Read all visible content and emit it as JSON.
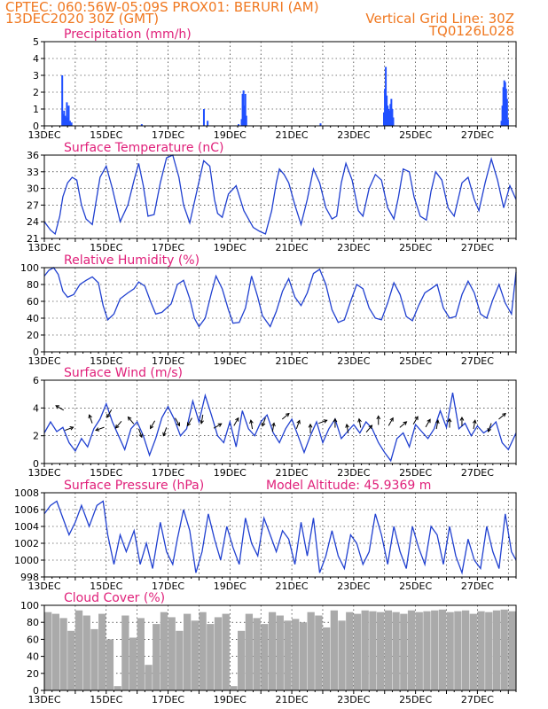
{
  "header": {
    "line1_left": "CPTEC:   060:56W-05:09S   PROX01: BERURI (AM)",
    "line2_left": "13DEC2020 30Z (GMT)",
    "right1": "Vertical Grid Line: 30Z",
    "right2": "TQ0126L028"
  },
  "chart_data": [
    {
      "type": "bar",
      "title": "Precipitation (mm/h)",
      "xlim": [
        0,
        15.25
      ],
      "ylim": [
        0,
        5
      ],
      "yticks": [
        0,
        1,
        2,
        3,
        4,
        5
      ],
      "xticklabels": [
        "13DEC",
        "15DEC",
        "17DEC",
        "19DEC",
        "21DEC",
        "23DEC",
        "25DEC",
        "27DEC"
      ],
      "color": "#2050ff",
      "x": [
        0.55,
        0.58,
        0.61,
        0.64,
        0.67,
        0.7,
        0.73,
        0.76,
        0.8,
        0.85,
        3.12,
        5.13,
        5.25,
        6.25,
        6.35,
        6.38,
        6.41,
        6.44,
        6.47,
        6.5,
        8.9,
        10.95,
        10.98,
        11.01,
        11.04,
        11.07,
        11.1,
        11.13,
        11.16,
        11.19,
        11.22,
        11.25,
        14.75,
        14.78,
        14.81,
        14.84,
        14.87,
        14.9,
        14.93,
        14.96
      ],
      "values": [
        3.0,
        0.7,
        0.9,
        0.6,
        0.5,
        1.4,
        0.5,
        1.2,
        0.3,
        0.2,
        0.1,
        1.0,
        0.3,
        0.1,
        0.4,
        1.9,
        2.1,
        1.2,
        1.9,
        0.6,
        0.15,
        0.8,
        2.2,
        3.5,
        1.8,
        1.2,
        1.0,
        0.9,
        1.3,
        1.6,
        1.0,
        0.5,
        0.3,
        1.2,
        2.3,
        2.7,
        2.6,
        2.2,
        1.6,
        0.4
      ]
    },
    {
      "type": "line",
      "title": "Surface Temperature (nC)",
      "xlim": [
        0,
        15.25
      ],
      "ylim": [
        21,
        36
      ],
      "yticks": [
        21,
        24,
        27,
        30,
        33,
        36
      ],
      "xticklabels": [
        "13DEC",
        "15DEC",
        "17DEC",
        "19DEC",
        "21DEC",
        "23DEC",
        "25DEC",
        "27DEC"
      ],
      "color": "#2040d0",
      "x": [
        0,
        0.2,
        0.35,
        0.5,
        0.6,
        0.75,
        0.9,
        1.05,
        1.2,
        1.35,
        1.55,
        1.8,
        2.0,
        2.2,
        2.45,
        2.7,
        2.9,
        3.05,
        3.2,
        3.35,
        3.55,
        3.75,
        3.95,
        4.15,
        4.35,
        4.5,
        4.7,
        4.95,
        5.15,
        5.35,
        5.5,
        5.6,
        5.75,
        5.95,
        6.2,
        6.45,
        6.6,
        6.75,
        6.95,
        7.15,
        7.35,
        7.5,
        7.6,
        7.75,
        7.9,
        8.1,
        8.3,
        8.5,
        8.7,
        8.9,
        9.1,
        9.3,
        9.45,
        9.6,
        9.75,
        9.95,
        10.15,
        10.3,
        10.5,
        10.7,
        10.9,
        11.1,
        11.3,
        11.45,
        11.6,
        11.8,
        11.95,
        12.15,
        12.35,
        12.5,
        12.65,
        12.85,
        13.05,
        13.25,
        13.5,
        13.7,
        13.9,
        14.05,
        14.25,
        14.45,
        14.65,
        14.85,
        15.05,
        15.25
      ],
      "values": [
        24,
        22.5,
        21.8,
        25,
        28.5,
        31,
        32,
        31.5,
        27,
        24.5,
        23.5,
        32,
        34,
        30,
        24,
        27,
        31.5,
        34.5,
        30.5,
        25,
        25.3,
        31,
        35.5,
        36,
        32,
        27,
        23.8,
        30,
        35,
        34,
        28,
        25.5,
        24.8,
        29,
        30.5,
        26,
        24.5,
        23,
        22.3,
        21.8,
        26,
        31,
        33.5,
        32.5,
        31,
        27,
        23.5,
        28,
        33.5,
        31,
        26.5,
        24.5,
        25,
        31,
        34.5,
        31.5,
        26,
        25,
        30,
        32.5,
        31.5,
        26.5,
        24.5,
        28.5,
        33.5,
        33,
        28.5,
        25,
        24.3,
        29.5,
        33,
        31.5,
        26.5,
        25,
        31,
        32,
        28,
        26,
        31,
        35.3,
        31.5,
        26.5,
        30.5,
        28
      ]
    },
    {
      "type": "line",
      "title": "Relative Humidity (%)",
      "xlim": [
        0,
        15.25
      ],
      "ylim": [
        0,
        100
      ],
      "yticks": [
        0,
        20,
        40,
        60,
        80,
        100
      ],
      "xticklabels": [
        "13DEC",
        "15DEC",
        "17DEC",
        "19DEC",
        "21DEC",
        "23DEC",
        "25DEC",
        "27DEC"
      ],
      "color": "#2040d0",
      "x": [
        0,
        0.15,
        0.3,
        0.45,
        0.6,
        0.75,
        0.95,
        1.15,
        1.35,
        1.55,
        1.75,
        1.9,
        2.05,
        2.25,
        2.45,
        2.7,
        2.9,
        3.05,
        3.25,
        3.45,
        3.6,
        3.8,
        3.95,
        4.1,
        4.3,
        4.5,
        4.7,
        4.85,
        5.0,
        5.2,
        5.4,
        5.55,
        5.75,
        5.95,
        6.1,
        6.3,
        6.5,
        6.7,
        6.9,
        7.05,
        7.3,
        7.5,
        7.7,
        7.9,
        8.1,
        8.3,
        8.5,
        8.7,
        8.9,
        9.1,
        9.3,
        9.5,
        9.7,
        9.9,
        10.1,
        10.3,
        10.5,
        10.7,
        10.9,
        11.1,
        11.3,
        11.5,
        11.7,
        11.9,
        12.1,
        12.3,
        12.5,
        12.7,
        12.9,
        13.1,
        13.3,
        13.5,
        13.7,
        13.9,
        14.1,
        14.3,
        14.5,
        14.7,
        14.9,
        15.1,
        15.25
      ],
      "values": [
        90,
        97,
        100,
        92,
        72,
        65,
        68,
        80,
        85,
        89,
        82,
        55,
        38,
        45,
        63,
        70,
        75,
        83,
        78,
        58,
        45,
        47,
        52,
        57,
        80,
        85,
        63,
        40,
        30,
        40,
        70,
        90,
        75,
        50,
        34,
        35,
        52,
        90,
        65,
        43,
        30,
        48,
        72,
        87,
        65,
        55,
        70,
        93,
        98,
        80,
        50,
        35,
        38,
        60,
        80,
        75,
        52,
        40,
        38,
        58,
        82,
        68,
        42,
        37,
        55,
        70,
        75,
        80,
        52,
        40,
        42,
        68,
        84,
        70,
        45,
        40,
        62,
        80,
        58,
        45,
        95
      ],
      "grid": true
    },
    {
      "type": "line",
      "title": "Surface Wind (m/s)",
      "xlim": [
        0,
        15.25
      ],
      "ylim": [
        0,
        6
      ],
      "yticks": [
        0,
        2,
        4,
        6
      ],
      "xticklabels": [
        "13DEC",
        "15DEC",
        "17DEC",
        "19DEC",
        "21DEC",
        "23DEC",
        "25DEC",
        "27DEC"
      ],
      "color": "#2040d0",
      "x": [
        0,
        0.2,
        0.4,
        0.6,
        0.8,
        1.0,
        1.2,
        1.4,
        1.6,
        1.8,
        2.0,
        2.2,
        2.4,
        2.6,
        2.8,
        3.0,
        3.2,
        3.4,
        3.6,
        3.8,
        4.0,
        4.2,
        4.4,
        4.6,
        4.8,
        5.0,
        5.2,
        5.4,
        5.6,
        5.8,
        6.0,
        6.2,
        6.4,
        6.6,
        6.8,
        7.0,
        7.2,
        7.4,
        7.6,
        7.8,
        8.0,
        8.2,
        8.4,
        8.6,
        8.8,
        9.0,
        9.2,
        9.4,
        9.6,
        9.8,
        10.0,
        10.2,
        10.4,
        10.6,
        10.8,
        11.0,
        11.2,
        11.4,
        11.6,
        11.8,
        12.0,
        12.2,
        12.4,
        12.6,
        12.8,
        13.0,
        13.2,
        13.4,
        13.6,
        13.8,
        14.0,
        14.2,
        14.4,
        14.6,
        14.8,
        15.0,
        15.25
      ],
      "values": [
        2.2,
        3.0,
        2.3,
        2.6,
        1.5,
        0.9,
        1.8,
        1.2,
        2.5,
        3.2,
        4.3,
        3.0,
        2.0,
        1.0,
        2.5,
        3.0,
        2.0,
        0.6,
        1.8,
        3.3,
        4.1,
        3.2,
        2.0,
        2.5,
        4.5,
        3.0,
        4.9,
        3.5,
        2.0,
        1.5,
        3.0,
        1.2,
        3.8,
        2.5,
        2.0,
        3.0,
        3.5,
        2.2,
        1.5,
        2.5,
        3.2,
        2.0,
        0.8,
        2.0,
        3.0,
        1.5,
        2.5,
        3.2,
        1.8,
        2.3,
        2.8,
        2.2,
        3.0,
        2.5,
        1.5,
        0.8,
        0.2,
        1.8,
        2.2,
        1.2,
        2.8,
        2.3,
        1.8,
        2.5,
        3.8,
        2.6,
        5.1,
        2.5,
        2.9,
        2.0,
        2.7,
        2.2,
        2.5,
        3.0,
        1.5,
        1.0,
        2.2
      ],
      "arrows": [
        [
          0.5,
          4.0,
          150
        ],
        [
          0.8,
          2.5,
          20
        ],
        [
          1.5,
          3.2,
          110
        ],
        [
          1.8,
          2.5,
          200
        ],
        [
          2.1,
          3.6,
          240
        ],
        [
          2.4,
          2.8,
          230
        ],
        [
          2.8,
          3.1,
          130
        ],
        [
          3.1,
          2.2,
          290
        ],
        [
          3.5,
          2.8,
          240
        ],
        [
          3.9,
          2.3,
          250
        ],
        [
          4.3,
          3.0,
          300
        ],
        [
          4.7,
          3.0,
          240
        ],
        [
          5.1,
          3.2,
          260
        ],
        [
          5.6,
          2.7,
          30
        ],
        [
          6.2,
          3.0,
          60
        ],
        [
          6.7,
          2.8,
          100
        ],
        [
          7.1,
          3.0,
          250
        ],
        [
          7.4,
          2.6,
          80
        ],
        [
          7.8,
          3.4,
          40
        ],
        [
          8.2,
          2.8,
          70
        ],
        [
          8.6,
          2.5,
          90
        ],
        [
          9.0,
          3.0,
          20
        ],
        [
          9.4,
          2.9,
          90
        ],
        [
          9.8,
          2.5,
          100
        ],
        [
          10.2,
          2.9,
          100
        ],
        [
          10.5,
          2.5,
          50
        ],
        [
          10.8,
          3.1,
          90
        ],
        [
          11.2,
          3.0,
          60
        ],
        [
          11.6,
          2.8,
          40
        ],
        [
          12.0,
          3.1,
          60
        ],
        [
          12.4,
          2.9,
          60
        ],
        [
          12.7,
          2.8,
          80
        ],
        [
          13.1,
          2.9,
          90
        ],
        [
          13.5,
          3.0,
          90
        ],
        [
          13.9,
          2.8,
          80
        ],
        [
          14.4,
          2.6,
          250
        ],
        [
          14.8,
          3.4,
          40
        ]
      ],
      "grid": true
    },
    {
      "type": "line",
      "title": "Surface Pressure (hPa)",
      "annotation": "Model Altitude: 45.9369 m",
      "xlim": [
        0,
        15.25
      ],
      "ylim": [
        998,
        1008
      ],
      "yticks": [
        998,
        1000,
        1002,
        1004,
        1006,
        1008
      ],
      "xticklabels": [
        "13DEC",
        "15DEC",
        "17DEC",
        "19DEC",
        "21DEC",
        "23DEC",
        "25DEC",
        "27DEC"
      ],
      "color": "#2040d0",
      "x": [
        0,
        0.2,
        0.4,
        0.6,
        0.8,
        1.0,
        1.2,
        1.45,
        1.7,
        1.9,
        2.05,
        2.25,
        2.45,
        2.65,
        2.9,
        3.1,
        3.3,
        3.5,
        3.75,
        3.95,
        4.15,
        4.3,
        4.5,
        4.7,
        4.9,
        5.1,
        5.3,
        5.5,
        5.7,
        5.9,
        6.1,
        6.3,
        6.5,
        6.7,
        6.9,
        7.1,
        7.3,
        7.5,
        7.7,
        7.9,
        8.1,
        8.3,
        8.5,
        8.7,
        8.9,
        9.1,
        9.3,
        9.5,
        9.7,
        9.9,
        10.1,
        10.3,
        10.5,
        10.7,
        10.9,
        11.1,
        11.3,
        11.5,
        11.7,
        11.9,
        12.1,
        12.3,
        12.5,
        12.7,
        12.9,
        13.1,
        13.3,
        13.5,
        13.7,
        13.9,
        14.1,
        14.3,
        14.5,
        14.7,
        14.9,
        15.1,
        15.25
      ],
      "values": [
        1005.5,
        1006.5,
        1007,
        1005,
        1003,
        1004.5,
        1006.5,
        1004,
        1006.5,
        1007,
        1003,
        999.5,
        1003,
        1001,
        1003.5,
        999.5,
        1002,
        999,
        1004.5,
        1001,
        999.5,
        1002.5,
        1006,
        1003.5,
        998.5,
        1001,
        1005.5,
        1002.5,
        1000,
        1004,
        1001.5,
        999.5,
        1005,
        1002,
        1000.5,
        1005,
        1003,
        1001,
        1003.5,
        1002.5,
        999.5,
        1004.5,
        1000.5,
        1005,
        998.5,
        1000.5,
        1003.5,
        1000.5,
        999,
        1003,
        1002,
        999.5,
        1001,
        1005.5,
        1003,
        999.5,
        1004,
        1001,
        999,
        1004,
        1001.5,
        999.5,
        1004,
        1003,
        999.5,
        1004,
        1000.5,
        998.5,
        1002.5,
        1000,
        999,
        1004,
        1001,
        999,
        1005.5,
        1001,
        1000
      ]
    },
    {
      "type": "bar",
      "title": "Cloud Cover (%)",
      "xlim": [
        0,
        15.25
      ],
      "ylim": [
        0,
        100
      ],
      "yticks": [
        0,
        20,
        40,
        60,
        80,
        100
      ],
      "xticklabels": [
        "13DEC",
        "15DEC",
        "17DEC",
        "19DEC",
        "21DEC",
        "23DEC",
        "25DEC",
        "27DEC"
      ],
      "color": "#aaaaaa",
      "x": [
        0.0,
        0.25,
        0.5,
        0.75,
        1.0,
        1.25,
        1.5,
        1.75,
        2.0,
        2.25,
        2.5,
        2.75,
        3.0,
        3.25,
        3.5,
        3.75,
        4.0,
        4.25,
        4.5,
        4.75,
        5.0,
        5.25,
        5.5,
        5.75,
        6.0,
        6.25,
        6.5,
        6.75,
        7.0,
        7.25,
        7.5,
        7.75,
        8.0,
        8.25,
        8.5,
        8.75,
        9.0,
        9.25,
        9.5,
        9.75,
        10.0,
        10.25,
        10.5,
        10.75,
        11.0,
        11.25,
        11.5,
        11.75,
        12.0,
        12.25,
        12.5,
        12.75,
        13.0,
        13.25,
        13.5,
        13.75,
        14.0,
        14.25,
        14.5,
        14.75,
        15.0
      ],
      "values": [
        92,
        90,
        85,
        70,
        94,
        88,
        72,
        90,
        60,
        5,
        88,
        62,
        85,
        30,
        78,
        92,
        86,
        70,
        90,
        82,
        92,
        78,
        86,
        90,
        5,
        70,
        90,
        85,
        78,
        92,
        88,
        82,
        84,
        80,
        92,
        88,
        74,
        94,
        82,
        92,
        90,
        94,
        93,
        92,
        94,
        92,
        90,
        94,
        92,
        93,
        94,
        95,
        92,
        93,
        94,
        90,
        93,
        92,
        94,
        95,
        93
      ],
      "grid": true
    }
  ]
}
